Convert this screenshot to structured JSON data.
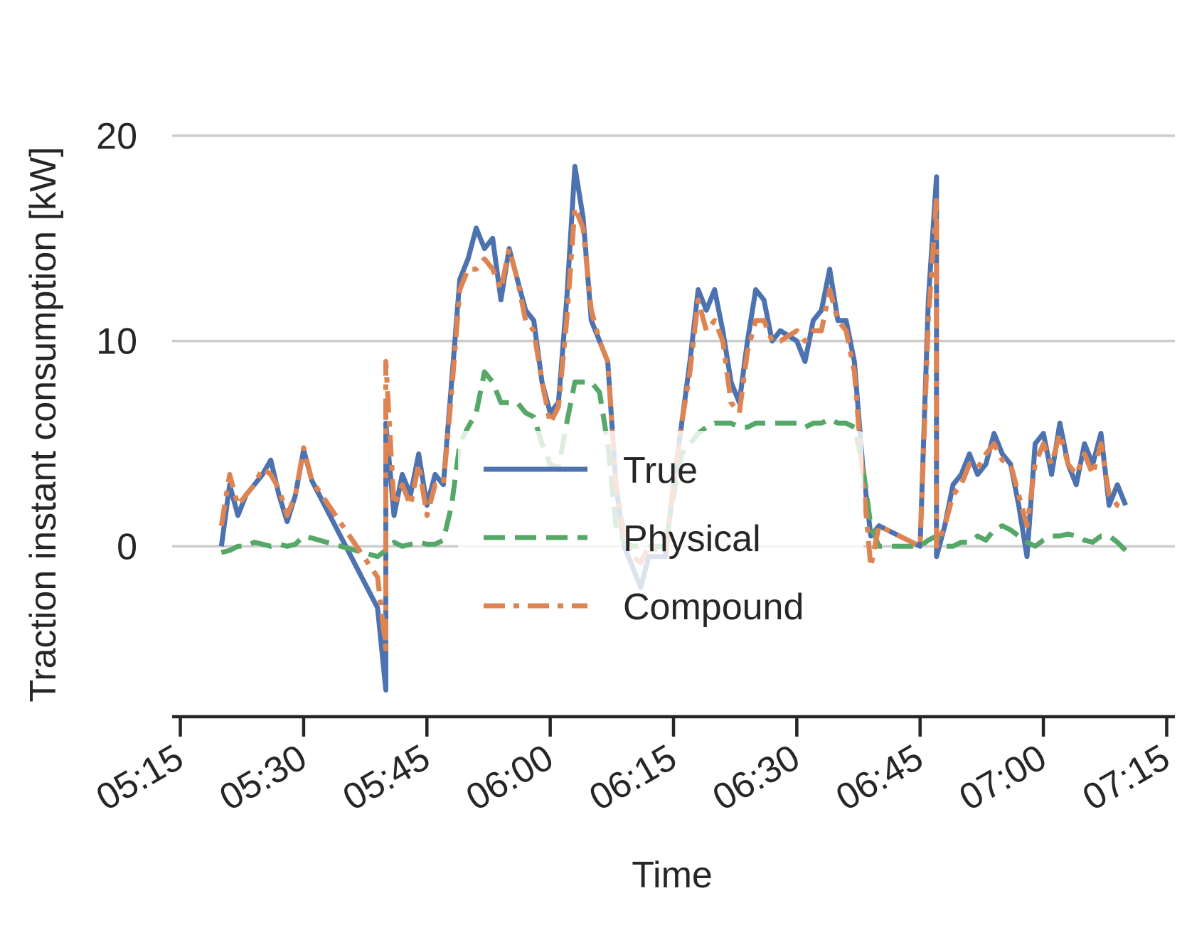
{
  "chart_data": {
    "type": "line",
    "x_label": "Time",
    "y_label": "Traction instant consumption [kW]",
    "x": [
      "05:20",
      "05:21",
      "05:22",
      "05:23",
      "05:24",
      "05:25",
      "05:26",
      "05:27",
      "05:28",
      "05:29",
      "05:30",
      "05:31",
      "05:39",
      "05:40",
      "05:40",
      "05:41",
      "05:42",
      "05:43",
      "05:44",
      "05:45",
      "05:46",
      "05:47",
      "05:48",
      "05:49",
      "05:50",
      "05:51",
      "05:52",
      "05:53",
      "05:54",
      "05:55",
      "05:56",
      "05:57",
      "05:58",
      "05:59",
      "06:00",
      "06:01",
      "06:02",
      "06:03",
      "06:04",
      "06:05",
      "06:06",
      "06:07",
      "06:08",
      "06:09",
      "06:10",
      "06:11",
      "06:12",
      "06:14",
      "06:15",
      "06:16",
      "06:17",
      "06:18",
      "06:19",
      "06:20",
      "06:21",
      "06:22",
      "06:23",
      "06:24",
      "06:25",
      "06:26",
      "06:27",
      "06:28",
      "06:30",
      "06:31",
      "06:32",
      "06:33",
      "06:34",
      "06:35",
      "06:36",
      "06:37",
      "06:38",
      "06:39",
      "06:40",
      "06:45",
      "06:46",
      "06:47",
      "06:47",
      "06:48",
      "06:49",
      "06:50",
      "06:51",
      "06:52",
      "06:53",
      "06:54",
      "06:55",
      "06:56",
      "06:57",
      "06:58",
      "06:59",
      "07:00",
      "07:01",
      "07:02",
      "07:03",
      "07:04",
      "07:05",
      "07:06",
      "07:07",
      "07:08",
      "07:09",
      "07:10"
    ],
    "series": [
      {
        "name": "True",
        "color": "#4c72b0",
        "dash": "solid",
        "values": [
          0,
          3,
          1.5,
          2.5,
          3,
          3.5,
          4.2,
          2.5,
          1.2,
          2.5,
          4.7,
          3.2,
          -3,
          -7,
          6,
          1.5,
          3.5,
          2.5,
          4.5,
          2,
          3.5,
          3,
          8,
          13,
          14,
          15.5,
          14.5,
          15,
          12,
          14.5,
          13,
          11.5,
          11,
          8,
          6.5,
          7,
          12,
          18.5,
          16,
          11,
          10,
          9,
          3,
          0,
          -1,
          -2,
          -0.5,
          -0.5,
          3,
          6,
          9,
          12.5,
          11.5,
          12.5,
          10.5,
          8,
          7,
          10,
          12.5,
          12,
          10,
          10.5,
          10,
          9,
          11,
          11.5,
          13.5,
          11,
          11,
          9,
          4,
          0.5,
          1,
          0,
          12,
          18,
          -0.5,
          1,
          3,
          3.5,
          4.5,
          3.5,
          4,
          5.5,
          4.5,
          4,
          2,
          -0.5,
          5,
          5.5,
          3.5,
          6,
          4,
          3,
          5,
          4,
          5.5,
          2,
          3,
          2
        ]
      },
      {
        "name": "Physical",
        "color": "#55a868",
        "dash": "dashed",
        "values": [
          -0.3,
          -0.2,
          0,
          0,
          0.2,
          0.1,
          0,
          0.1,
          0,
          0.1,
          0.5,
          0.4,
          -0.5,
          -0.2,
          0,
          0.2,
          0,
          0.1,
          0.2,
          0.1,
          0.1,
          0.3,
          2,
          5,
          5.8,
          6.5,
          8.5,
          8,
          7,
          7,
          7,
          6.5,
          6.3,
          5,
          4,
          3.8,
          6,
          8,
          8,
          8,
          7.5,
          5,
          1,
          0.2,
          0,
          0,
          0,
          0,
          2.5,
          4.5,
          5,
          5.5,
          5.8,
          6,
          6,
          6,
          5.8,
          5.8,
          6,
          6,
          6,
          6,
          6,
          5.8,
          6,
          6,
          6.2,
          6,
          6,
          5.8,
          4,
          1,
          0,
          0,
          0.3,
          0.5,
          0.5,
          0,
          0,
          0.2,
          0.2,
          0.5,
          0.3,
          0.8,
          1,
          0.8,
          0.5,
          0.2,
          0,
          0.3,
          0.5,
          0.5,
          0.6,
          0.5,
          0.3,
          0.2,
          0.5,
          0.5,
          0.2,
          -0.2
        ]
      },
      {
        "name": "Compound",
        "color": "#dd8452",
        "dash": "dashdot",
        "values": [
          1,
          3.5,
          2,
          2.5,
          3,
          3.8,
          3.5,
          2.8,
          1.5,
          2.5,
          4.8,
          3.2,
          -1.5,
          -5,
          9,
          2,
          3,
          2,
          4,
          1.5,
          3,
          3,
          7.5,
          12.5,
          13.5,
          13.5,
          14,
          13.5,
          12.5,
          14.5,
          13,
          11,
          10.5,
          8,
          6,
          6.8,
          11,
          16.5,
          15.5,
          11.5,
          10,
          9,
          3,
          0.5,
          -0.5,
          -0.8,
          0,
          -0.3,
          3,
          6,
          8.5,
          12,
          10.5,
          11,
          10,
          7,
          6.5,
          9.5,
          11,
          11,
          10,
          10,
          10.5,
          10,
          10.5,
          10.5,
          12.5,
          11,
          10.5,
          8.5,
          3.5,
          -1,
          1,
          0,
          11,
          17,
          0,
          1,
          2.5,
          3,
          4,
          3.8,
          4.5,
          5,
          4.2,
          4,
          2.5,
          1,
          4,
          5,
          4,
          5.5,
          4,
          3.5,
          4.5,
          3.5,
          5,
          2.5,
          2,
          1.8
        ]
      }
    ],
    "xlim": [
      "05:14",
      "07:16"
    ],
    "xticks": [
      "05:15",
      "05:30",
      "05:45",
      "06:00",
      "06:15",
      "06:30",
      "06:45",
      "07:00",
      "07:15"
    ],
    "ylim": [
      -8.3,
      25.5
    ],
    "yticks": [
      0,
      10,
      20
    ],
    "grid": true,
    "legend": "center"
  }
}
